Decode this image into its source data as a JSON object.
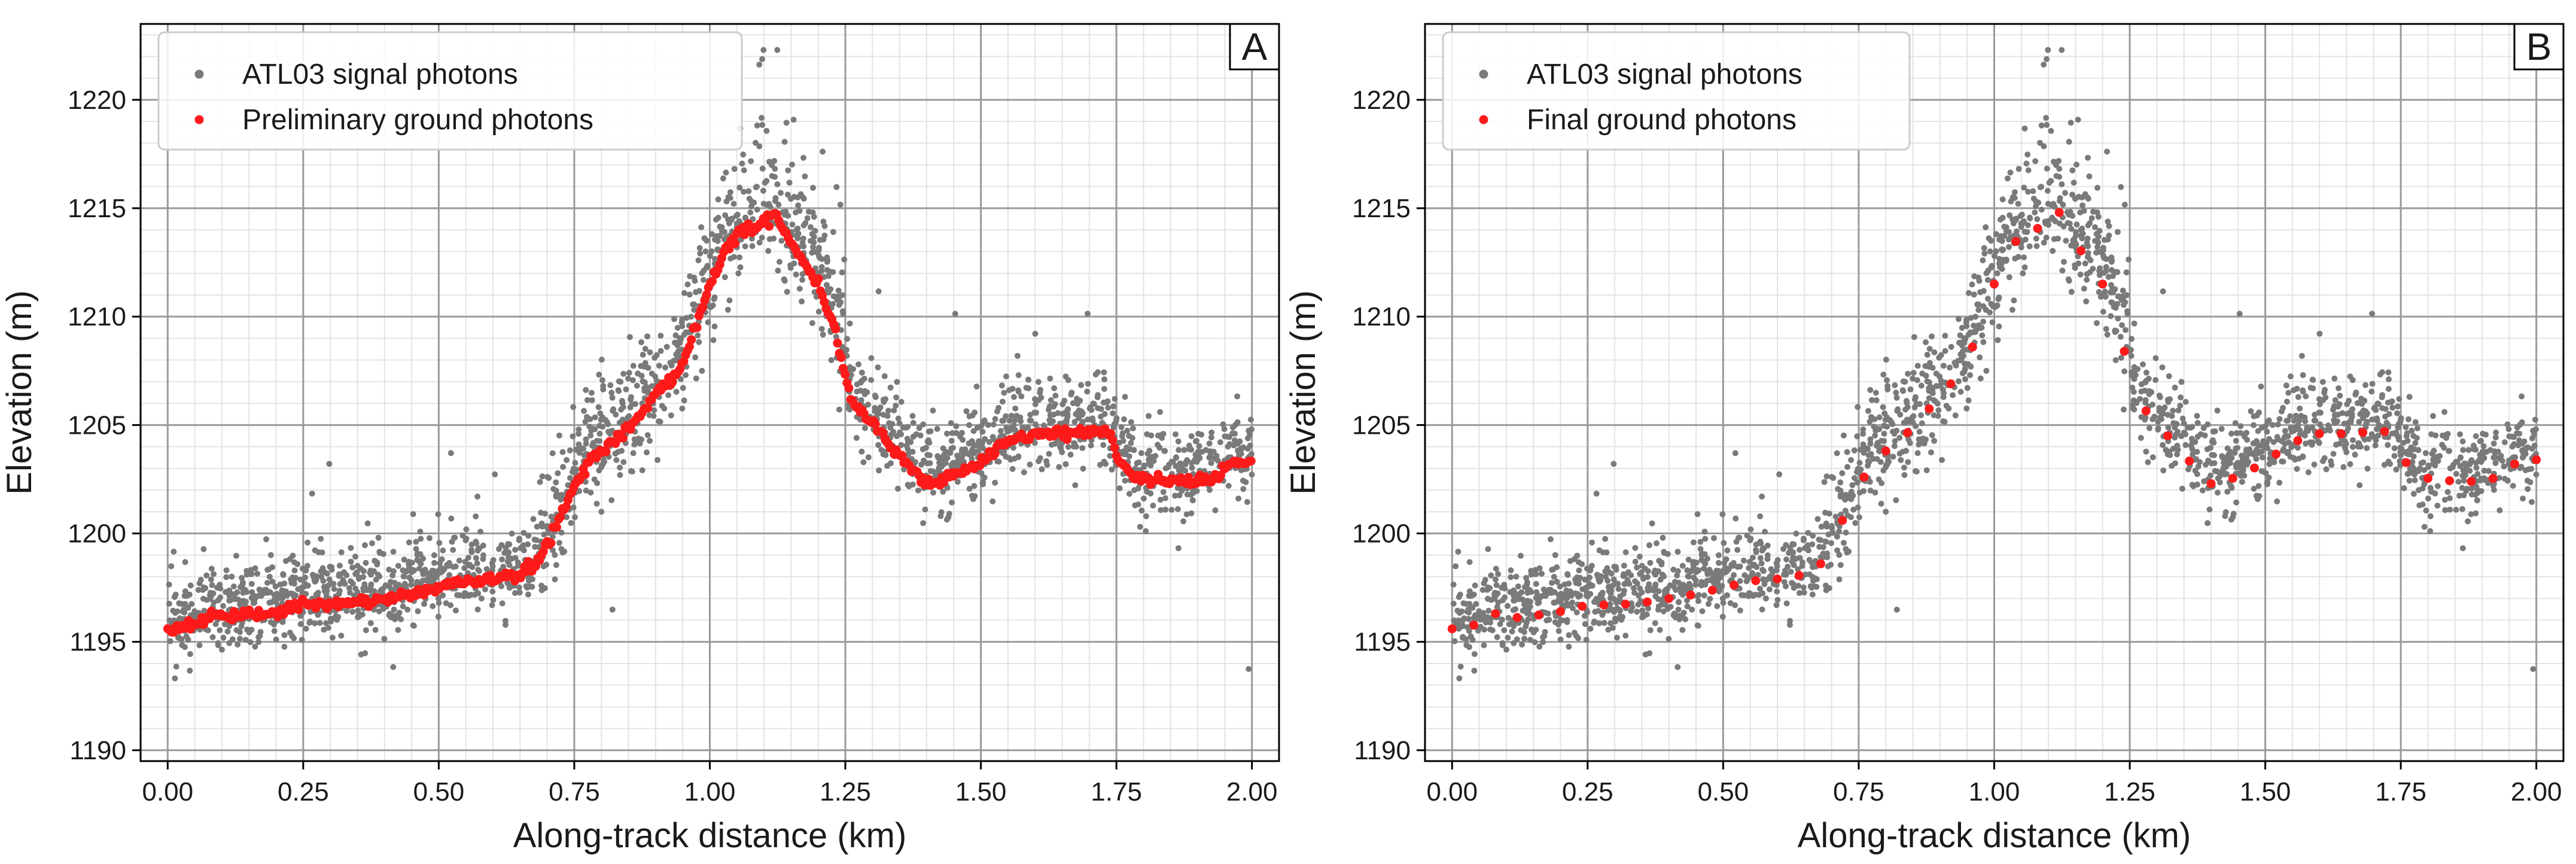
{
  "colors": {
    "signal": "#7a7a7a",
    "ground": "#ff1a1a",
    "grid_major": "#9a9a9a",
    "grid_minor": "#e4e4e4",
    "frame": "#000000"
  },
  "chart_data": [
    {
      "type": "scatter",
      "panel": "A",
      "xlabel": "Along-track distance (km)",
      "ylabel": "Elevation (m)",
      "xlim": [
        -0.05,
        2.05
      ],
      "ylim": [
        1189.5,
        1223.5
      ],
      "xticks": [
        0.0,
        0.25,
        0.5,
        0.75,
        1.0,
        1.25,
        1.5,
        1.75,
        2.0
      ],
      "xtick_labels": [
        "0.00",
        "0.25",
        "0.50",
        "0.75",
        "1.00",
        "1.25",
        "1.50",
        "1.75",
        "2.00"
      ],
      "yticks": [
        1190,
        1195,
        1200,
        1205,
        1210,
        1215,
        1220
      ],
      "ytick_labels": [
        "1190",
        "1195",
        "1200",
        "1205",
        "1210",
        "1215",
        "1220"
      ],
      "legend_position": "top-left",
      "ground_style": "dense",
      "series": [
        {
          "name": "ATL03 signal photons",
          "role": "signal"
        },
        {
          "name": "Preliminary ground photons",
          "role": "ground"
        }
      ],
      "ground_profile": {
        "x": [
          0.0,
          0.03,
          0.06,
          0.08,
          0.11,
          0.15,
          0.2,
          0.25,
          0.3,
          0.35,
          0.4,
          0.45,
          0.5,
          0.55,
          0.6,
          0.65,
          0.68,
          0.7,
          0.72,
          0.75,
          0.78,
          0.82,
          0.86,
          0.9,
          0.94,
          0.97,
          1.0,
          1.03,
          1.06,
          1.09,
          1.12,
          1.14,
          1.17,
          1.2,
          1.23,
          1.26,
          1.3,
          1.35,
          1.4,
          1.45,
          1.5,
          1.55,
          1.6,
          1.65,
          1.7,
          1.74,
          1.75,
          1.78,
          1.85,
          1.9,
          1.93,
          1.96,
          2.0
        ],
        "y": [
          1195.6,
          1195.7,
          1195.9,
          1196.3,
          1196.1,
          1196.2,
          1196.4,
          1196.7,
          1196.7,
          1196.8,
          1197.0,
          1197.2,
          1197.5,
          1197.8,
          1197.9,
          1198.1,
          1198.6,
          1199.5,
          1200.6,
          1202.2,
          1203.4,
          1204.2,
          1205.1,
          1206.4,
          1207.4,
          1209.2,
          1211.5,
          1213.2,
          1214.0,
          1214.1,
          1214.8,
          1213.9,
          1212.6,
          1211.5,
          1209.5,
          1206.2,
          1205.1,
          1203.6,
          1202.3,
          1202.6,
          1203.3,
          1204.2,
          1204.6,
          1204.6,
          1204.7,
          1204.7,
          1203.6,
          1202.6,
          1202.4,
          1202.4,
          1202.6,
          1203.2,
          1203.4
        ]
      }
    },
    {
      "type": "scatter",
      "panel": "B",
      "xlabel": "Along-track distance (km)",
      "ylabel": "Elevation (m)",
      "xlim": [
        -0.05,
        2.05
      ],
      "ylim": [
        1189.5,
        1223.5
      ],
      "xticks": [
        0.0,
        0.25,
        0.5,
        0.75,
        1.0,
        1.25,
        1.5,
        1.75,
        2.0
      ],
      "xtick_labels": [
        "0.00",
        "0.25",
        "0.50",
        "0.75",
        "1.00",
        "1.25",
        "1.50",
        "1.75",
        "2.00"
      ],
      "yticks": [
        1190,
        1195,
        1200,
        1205,
        1210,
        1215,
        1220
      ],
      "ytick_labels": [
        "1190",
        "1195",
        "1200",
        "1205",
        "1210",
        "1215",
        "1220"
      ],
      "legend_position": "top-left",
      "ground_style": "sparse",
      "series": [
        {
          "name": "ATL03 signal photons",
          "role": "signal"
        },
        {
          "name": "Final ground photons",
          "role": "ground"
        }
      ],
      "ground_profile": {
        "x": [
          0.0,
          0.03,
          0.06,
          0.08,
          0.11,
          0.15,
          0.2,
          0.25,
          0.3,
          0.35,
          0.4,
          0.45,
          0.5,
          0.55,
          0.6,
          0.65,
          0.68,
          0.7,
          0.72,
          0.75,
          0.78,
          0.82,
          0.86,
          0.9,
          0.94,
          0.97,
          1.0,
          1.03,
          1.06,
          1.09,
          1.12,
          1.14,
          1.17,
          1.2,
          1.23,
          1.26,
          1.3,
          1.35,
          1.4,
          1.45,
          1.5,
          1.55,
          1.6,
          1.65,
          1.7,
          1.74,
          1.75,
          1.78,
          1.85,
          1.9,
          1.93,
          1.96,
          2.0
        ],
        "y": [
          1195.6,
          1195.7,
          1195.9,
          1196.3,
          1196.1,
          1196.2,
          1196.4,
          1196.7,
          1196.7,
          1196.8,
          1197.0,
          1197.2,
          1197.5,
          1197.8,
          1197.9,
          1198.1,
          1198.6,
          1199.5,
          1200.6,
          1202.2,
          1203.4,
          1204.2,
          1205.1,
          1206.4,
          1207.4,
          1209.2,
          1211.5,
          1213.2,
          1214.0,
          1214.1,
          1214.8,
          1213.9,
          1212.6,
          1211.5,
          1209.5,
          1206.2,
          1205.1,
          1203.6,
          1202.3,
          1202.6,
          1203.3,
          1204.2,
          1204.6,
          1204.6,
          1204.7,
          1204.7,
          1203.6,
          1202.6,
          1202.4,
          1202.4,
          1202.6,
          1203.2,
          1203.4
        ]
      }
    }
  ]
}
